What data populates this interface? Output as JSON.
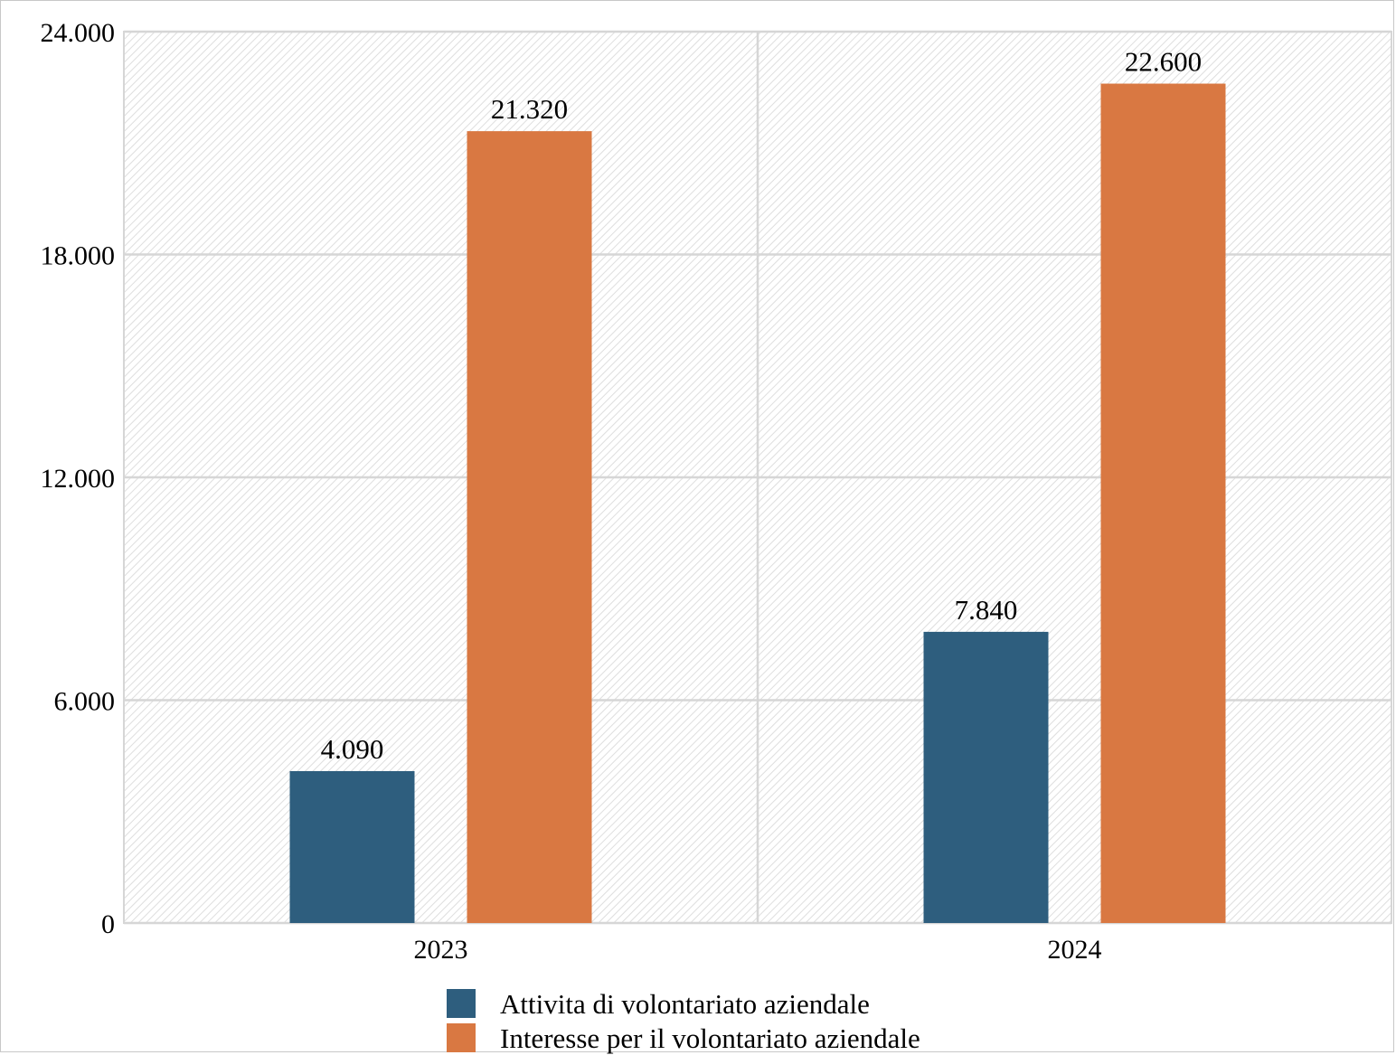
{
  "chart_data": {
    "type": "bar",
    "categories": [
      "2023",
      "2024"
    ],
    "series": [
      {
        "name": "Attivita di volontariato aziendale",
        "values": [
          4090,
          7840
        ],
        "labels": [
          "4.090",
          "7.840"
        ],
        "color": "#2e5e7e"
      },
      {
        "name": "Interesse per il volontariato aziendale",
        "values": [
          21320,
          22600
        ],
        "labels": [
          "21.320",
          "22.600"
        ],
        "color": "#d97842"
      }
    ],
    "ylim": [
      0,
      24000
    ],
    "yticks": [
      0,
      6000,
      12000,
      18000,
      24000
    ],
    "ytick_labels": [
      "0",
      "6.000",
      "12.000",
      "18.000",
      "24.000"
    ],
    "grid": true,
    "legend": "bottom-center",
    "background_pattern": "diagonal-hatch"
  }
}
